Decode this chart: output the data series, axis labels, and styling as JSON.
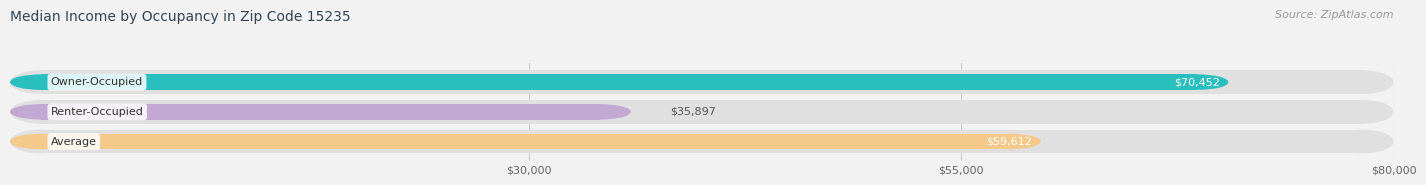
{
  "title": "Median Income by Occupancy in Zip Code 15235",
  "source_text": "Source: ZipAtlas.com",
  "categories": [
    "Owner-Occupied",
    "Renter-Occupied",
    "Average"
  ],
  "values": [
    70452,
    35897,
    59612
  ],
  "bar_colors": [
    "#2abfbf",
    "#c4a8d4",
    "#f5c98a"
  ],
  "value_labels": [
    "$70,452",
    "$35,897",
    "$59,612"
  ],
  "xmin": 0,
  "xmax": 80000,
  "xticks": [
    30000,
    55000,
    80000
  ],
  "xtick_labels": [
    "$30,000",
    "$55,000",
    "$80,000"
  ],
  "background_color": "#f2f2f2",
  "bar_background": "#e0e0e0",
  "title_color": "#334455",
  "source_color": "#999999",
  "title_fontsize": 10,
  "source_fontsize": 8,
  "bar_label_fontsize": 8,
  "value_label_fontsize": 8,
  "xtick_fontsize": 8
}
